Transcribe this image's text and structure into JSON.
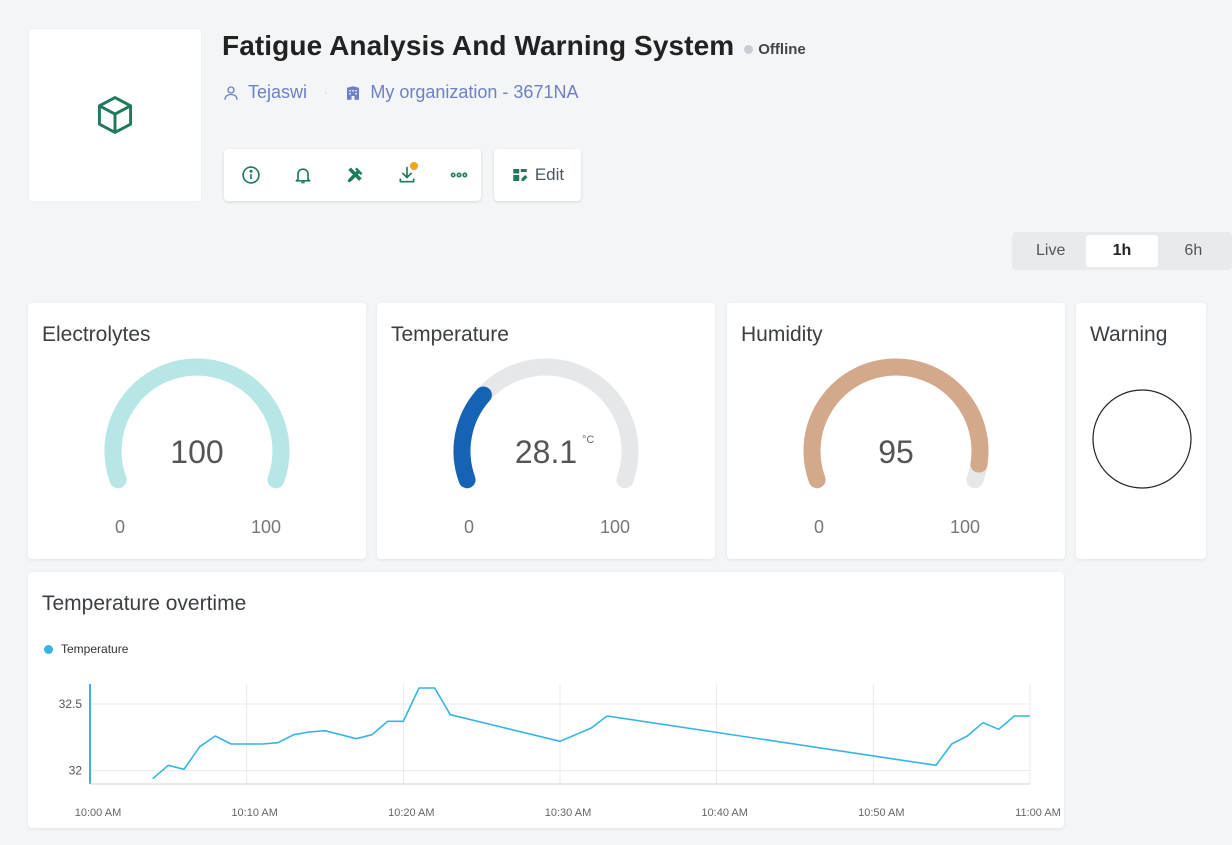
{
  "header": {
    "title": "Fatigue Analysis And Warning System",
    "status": "Offline",
    "owner": "Tejaswi",
    "organization": "My organization - 3671NA",
    "thumbnail_icon": "cube-icon"
  },
  "toolbar": {
    "icons": [
      "info-icon",
      "bell-icon",
      "tools-icon",
      "download-icon",
      "more-icon"
    ],
    "edit_label": "Edit"
  },
  "time_range": {
    "options": [
      "Live",
      "1h",
      "6h"
    ],
    "selected": "1h"
  },
  "widgets": {
    "electrolytes": {
      "title": "Electrolytes",
      "value": "100",
      "unit": "",
      "min": "0",
      "max": "100",
      "fraction": 1.0,
      "color": "#b6e6e6"
    },
    "temperature": {
      "title": "Temperature",
      "value": "28.1",
      "unit": "°C",
      "min": "0",
      "max": "100",
      "fraction": 0.281,
      "color": "#1563b3"
    },
    "humidity": {
      "title": "Humidity",
      "value": "95",
      "unit": "",
      "min": "0",
      "max": "100",
      "fraction": 0.95,
      "color": "#d4a88b"
    },
    "warning": {
      "title": "Warning"
    }
  },
  "colors": {
    "gauge_track": "#e6e7e9",
    "line": "#35b4e6",
    "accent_green": "#1f7a5a"
  },
  "chart_data": {
    "type": "line",
    "title": "Temperature overtime",
    "series": [
      {
        "name": "Temperature",
        "points": [
          [
            "10:04",
            31.94
          ],
          [
            "10:05",
            32.04
          ],
          [
            "10:06",
            32.01
          ],
          [
            "10:07",
            32.18
          ],
          [
            "10:08",
            32.26
          ],
          [
            "10:09",
            32.2
          ],
          [
            "10:11",
            32.2
          ],
          [
            "10:12",
            32.21
          ],
          [
            "10:13",
            32.27
          ],
          [
            "10:14",
            32.29
          ],
          [
            "10:15",
            32.3
          ],
          [
            "10:17",
            32.24
          ],
          [
            "10:18",
            32.27
          ],
          [
            "10:19",
            32.37
          ],
          [
            "10:20",
            32.37
          ],
          [
            "10:21",
            32.62
          ],
          [
            "10:22",
            32.62
          ],
          [
            "10:23",
            32.42
          ],
          [
            "10:30",
            32.22
          ],
          [
            "10:32",
            32.32
          ],
          [
            "10:33",
            32.41
          ],
          [
            "10:54",
            32.04
          ],
          [
            "10:55",
            32.2
          ],
          [
            "10:56",
            32.26
          ],
          [
            "10:57",
            32.36
          ],
          [
            "10:58",
            32.31
          ],
          [
            "10:59",
            32.41
          ],
          [
            "11:00",
            32.41
          ]
        ]
      }
    ],
    "x_ticks": [
      "10:00 AM",
      "10:10 AM",
      "10:20 AM",
      "10:30 AM",
      "10:40 AM",
      "10:50 AM",
      "11:00 AM"
    ],
    "y_ticks": [
      "32",
      "32.5"
    ],
    "xlim": [
      "10:00",
      "11:00"
    ],
    "ylim": [
      31.9,
      32.65
    ],
    "grid": true,
    "legend": "top-left"
  }
}
